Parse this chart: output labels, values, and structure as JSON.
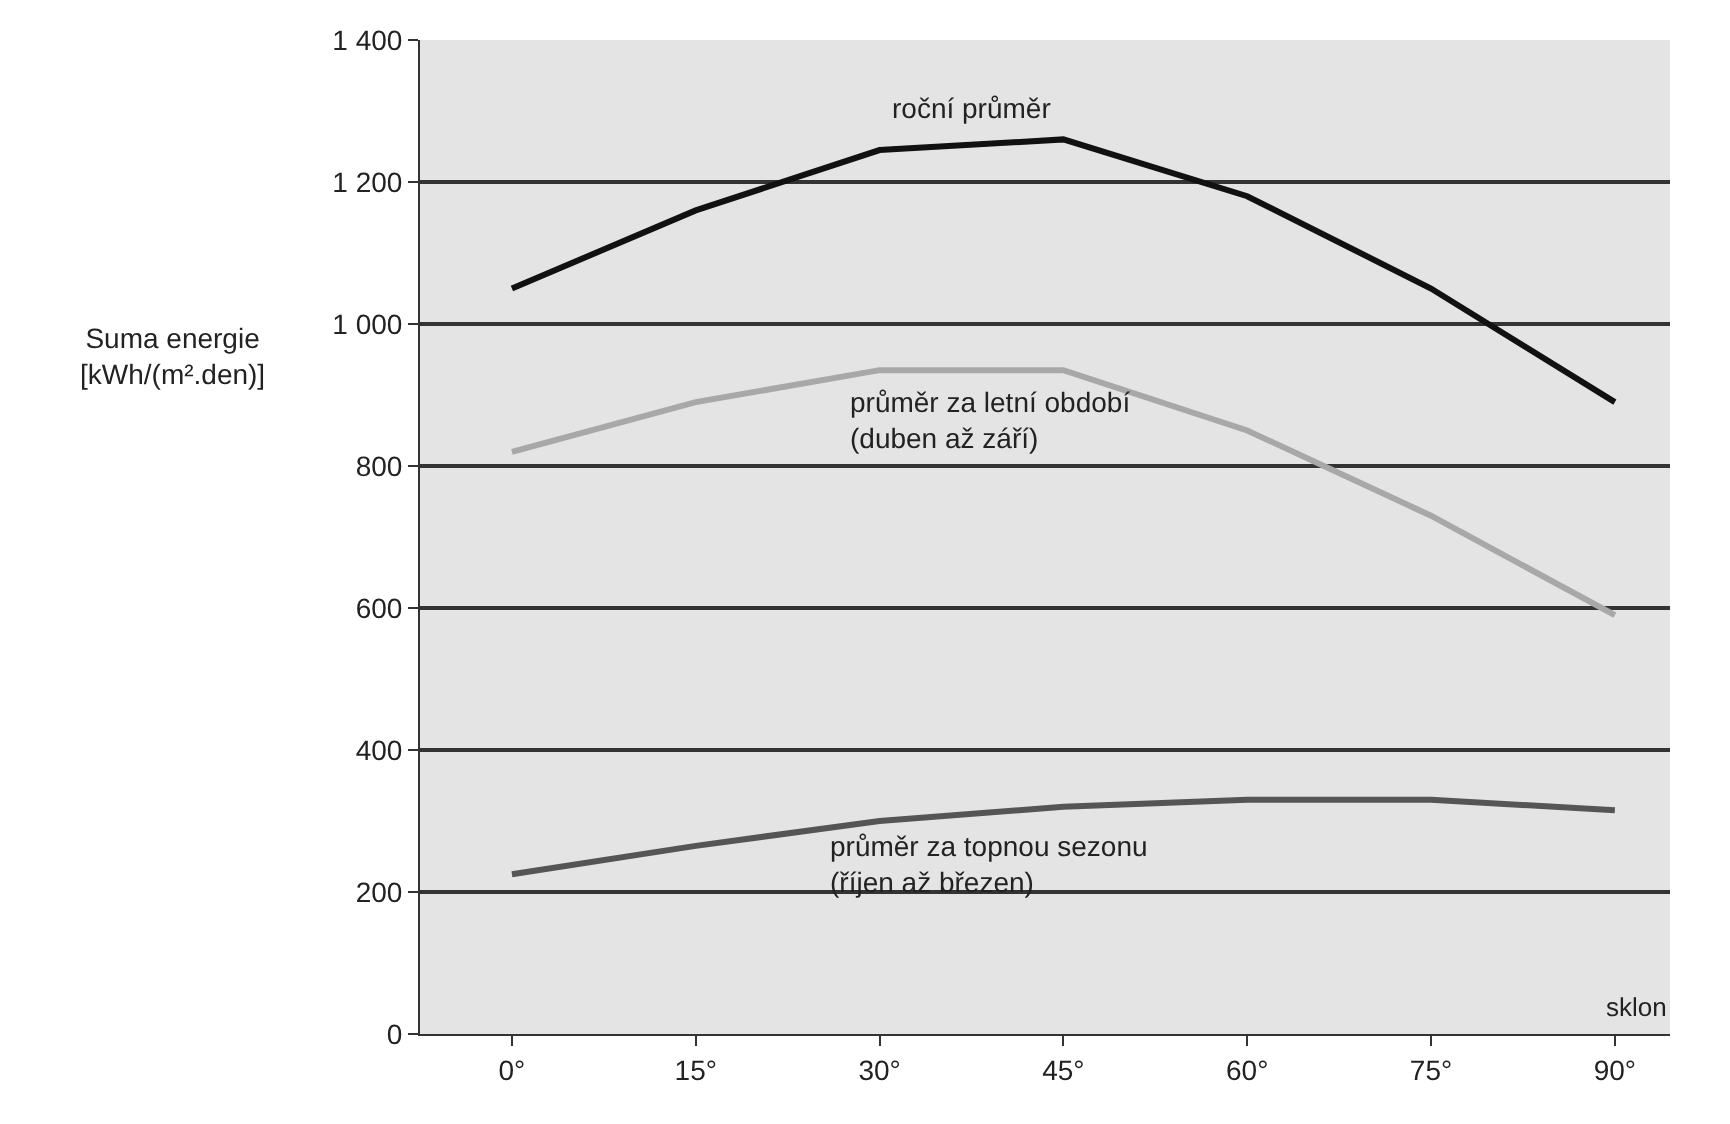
{
  "chart_data": {
    "type": "line",
    "xlabel": "sklon",
    "ylabel": "Suma energie [kWh/(m².den)]",
    "categories": [
      "0°",
      "15°",
      "30°",
      "45°",
      "60°",
      "75°",
      "90°"
    ],
    "series": [
      {
        "name": "roční průměr",
        "color": "#111111",
        "values": [
          1050,
          1160,
          1245,
          1260,
          1180,
          1050,
          890
        ]
      },
      {
        "name": "průměr za letní období\n(duben až září)",
        "color": "#a8a8a8",
        "values": [
          820,
          890,
          935,
          935,
          850,
          730,
          590
        ]
      },
      {
        "name": "průměr za topnou sezonu\n(říjen až březen)",
        "color": "#555555",
        "values": [
          225,
          265,
          300,
          320,
          330,
          330,
          315
        ]
      }
    ],
    "ylim": [
      0,
      1400
    ],
    "yticks": [
      0,
      200,
      400,
      600,
      800,
      {
        "value": 1000,
        "label": "1 000"
      },
      {
        "value": 1200,
        "label": "1 200"
      },
      {
        "value": 1400,
        "label": "1 400"
      }
    ],
    "grid": "y",
    "legend": false,
    "marker": "none",
    "line_style": "solid"
  }
}
